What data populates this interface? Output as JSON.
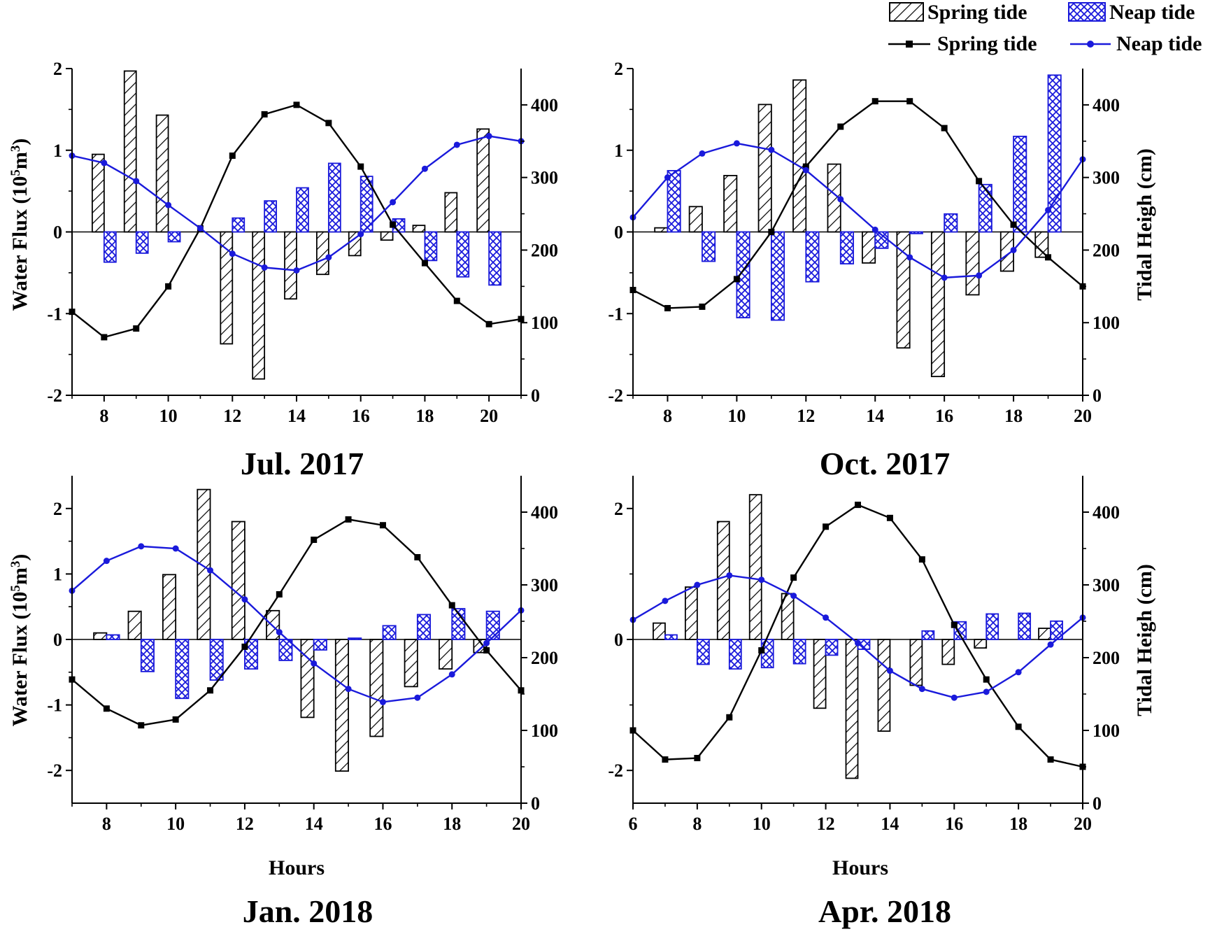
{
  "legend": {
    "bar_spring": "Spring tide",
    "bar_neap": "Neap tide",
    "line_spring": "Spring tide",
    "line_neap": "Neap tide"
  },
  "colors": {
    "spring": "#000000",
    "neap": "#1a1adb"
  },
  "chart_data": [
    {
      "type": "bar+line",
      "title": "Jul. 2017",
      "xlabel": "",
      "ylabel_left": "Water Flux (10^5 m^3)",
      "ylabel_right": "",
      "xlim": [
        7,
        21
      ],
      "xticks": [
        8,
        10,
        12,
        14,
        16,
        18,
        20
      ],
      "ylim_left": [
        -2,
        2
      ],
      "yticks_left": [
        -2,
        -1,
        0,
        1,
        2
      ],
      "ylim_right": [
        0,
        450
      ],
      "yticks_right": [
        0,
        100,
        200,
        300,
        400
      ],
      "hours": [
        8,
        9,
        10,
        11,
        12,
        13,
        14,
        15,
        16,
        17,
        18,
        19,
        20
      ],
      "flux_spring": [
        0.95,
        1.97,
        1.43,
        0,
        -1.37,
        -1.8,
        -0.82,
        -0.52,
        -0.29,
        -0.1,
        0.08,
        0.48,
        1.26
      ],
      "flux_neap": [
        -0.37,
        -0.26,
        -0.12,
        0,
        0.17,
        0.38,
        0.54,
        0.84,
        0.68,
        0.16,
        -0.35,
        -0.55,
        -0.65
      ],
      "tide_x": [
        7,
        8,
        9,
        10,
        11,
        12,
        13,
        14,
        15,
        16,
        17,
        18,
        19,
        20,
        21
      ],
      "tide_spring": [
        115,
        80,
        92,
        150,
        230,
        330,
        387,
        400,
        375,
        315,
        235,
        182,
        130,
        98,
        105
      ],
      "tide_neap": [
        330,
        320,
        295,
        262,
        230,
        195,
        176,
        172,
        190,
        222,
        266,
        312,
        345,
        357,
        350
      ]
    },
    {
      "type": "bar+line",
      "title": "Oct. 2017",
      "xlabel": "",
      "ylabel_left": "",
      "ylabel_right": "Tidal Heigh (cm)",
      "xlim": [
        7,
        20
      ],
      "xticks": [
        8,
        10,
        12,
        14,
        16,
        18,
        20
      ],
      "ylim_left": [
        -2,
        2
      ],
      "yticks_left": [
        -2,
        -1,
        0,
        1,
        2
      ],
      "ylim_right": [
        0,
        450
      ],
      "yticks_right": [
        0,
        100,
        200,
        300,
        400
      ],
      "hours": [
        8,
        9,
        10,
        11,
        12,
        13,
        14,
        15,
        16,
        17,
        18,
        19
      ],
      "flux_spring": [
        0.05,
        0.31,
        0.69,
        1.56,
        1.86,
        0.83,
        -0.38,
        -1.42,
        -1.77,
        -0.77,
        -0.48,
        -0.31
      ],
      "flux_neap": [
        0.75,
        -0.36,
        -1.05,
        -1.08,
        -0.61,
        -0.39,
        -0.2,
        -0.02,
        0.22,
        0.58,
        1.17,
        1.92
      ],
      "tide_x": [
        7,
        8,
        9,
        10,
        11,
        12,
        13,
        14,
        15,
        16,
        17,
        18,
        19,
        20
      ],
      "tide_spring": [
        145,
        120,
        122,
        160,
        225,
        315,
        370,
        405,
        405,
        368,
        295,
        235,
        190,
        150
      ],
      "tide_neap": [
        245,
        300,
        333,
        347,
        338,
        310,
        270,
        228,
        190,
        162,
        165,
        200,
        255,
        325
      ]
    },
    {
      "type": "bar+line",
      "title": "Jan. 2018",
      "xlabel": "Hours",
      "ylabel_left": "Water Flux (10^5 m^3)",
      "ylabel_right": "",
      "xlim": [
        7,
        20
      ],
      "xticks": [
        8,
        10,
        12,
        14,
        16,
        18,
        20
      ],
      "ylim_left": [
        -2.5,
        2.5
      ],
      "yticks_left": [
        -2,
        -1,
        0,
        1,
        2
      ],
      "ylim_right": [
        0,
        450
      ],
      "yticks_right": [
        0,
        100,
        200,
        300,
        400
      ],
      "hours": [
        8,
        9,
        10,
        11,
        12,
        13,
        14,
        15,
        16,
        17,
        18,
        19
      ],
      "flux_spring": [
        0.1,
        0.43,
        0.99,
        2.29,
        1.8,
        0.44,
        -1.19,
        -2.01,
        -1.48,
        -0.72,
        -0.45,
        -0.2
      ],
      "flux_neap": [
        0.07,
        -0.49,
        -0.9,
        -0.62,
        -0.45,
        -0.32,
        -0.16,
        0.02,
        0.21,
        0.38,
        0.47,
        0.43
      ],
      "tide_x": [
        7,
        8,
        9,
        10,
        11,
        12,
        13,
        14,
        15,
        16,
        17,
        18,
        19,
        20
      ],
      "tide_spring": [
        170,
        130,
        107,
        115,
        155,
        215,
        287,
        362,
        390,
        382,
        338,
        272,
        210,
        155
      ],
      "tide_neap": [
        292,
        333,
        353,
        350,
        320,
        280,
        235,
        192,
        157,
        139,
        145,
        177,
        220,
        265
      ]
    },
    {
      "type": "bar+line",
      "title": "Apr. 2018",
      "xlabel": "Hours",
      "ylabel_left": "",
      "ylabel_right": "Tidal Heigh (cm)",
      "xlim": [
        6,
        20
      ],
      "xticks": [
        6,
        8,
        10,
        12,
        14,
        16,
        18,
        20
      ],
      "ylim_left": [
        -2.5,
        2.5
      ],
      "yticks_left": [
        -2,
        0,
        2
      ],
      "ylim_right": [
        0,
        450
      ],
      "yticks_right": [
        0,
        100,
        200,
        300,
        400
      ],
      "hours": [
        7,
        8,
        9,
        10,
        11,
        12,
        13,
        14,
        15,
        16,
        17,
        18,
        19
      ],
      "flux_spring": [
        0.25,
        0.8,
        1.8,
        2.21,
        0.7,
        -1.05,
        -2.12,
        -1.4,
        -0.7,
        -0.38,
        -0.13,
        0,
        0.17
      ],
      "flux_neap": [
        0.07,
        -0.38,
        -0.45,
        -0.43,
        -0.37,
        -0.24,
        -0.15,
        0,
        0.13,
        0.27,
        0.39,
        0.4,
        0.28
      ],
      "tide_x": [
        6,
        7,
        8,
        9,
        10,
        11,
        12,
        13,
        14,
        15,
        16,
        17,
        18,
        19,
        20
      ],
      "tide_spring": [
        100,
        60,
        62,
        118,
        210,
        310,
        380,
        410,
        392,
        335,
        245,
        170,
        105,
        60,
        50
      ],
      "tide_neap": [
        252,
        278,
        300,
        313,
        307,
        285,
        255,
        220,
        182,
        157,
        145,
        153,
        180,
        218,
        255
      ]
    }
  ]
}
